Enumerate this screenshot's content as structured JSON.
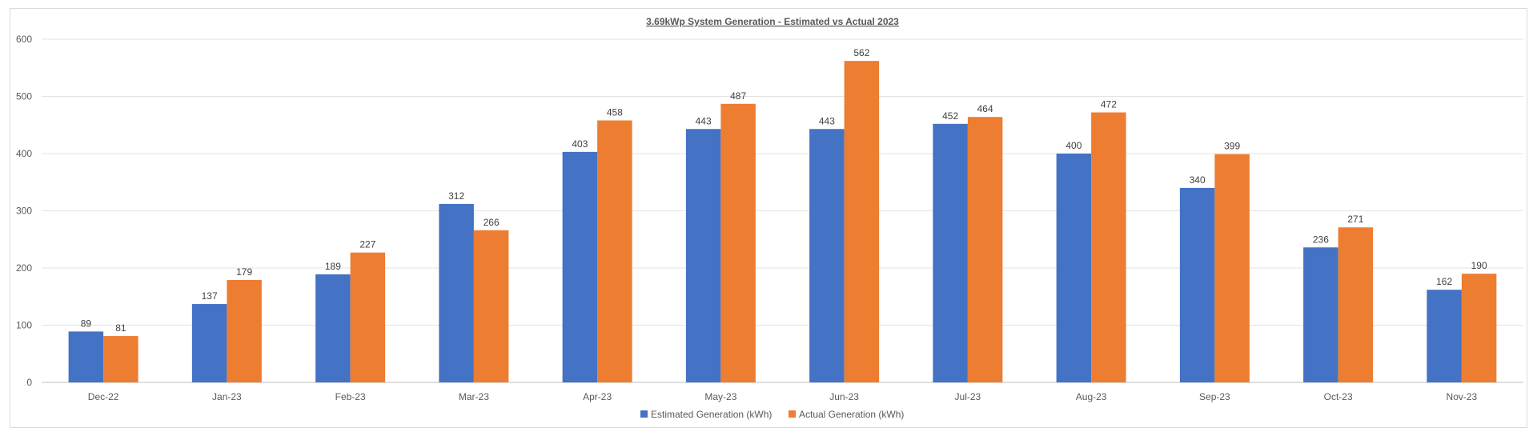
{
  "chart_data": {
    "type": "bar",
    "title": "3.69kWp System Generation - Estimated vs Actual 2023",
    "xlabel": "",
    "ylabel": "",
    "ylim": [
      0,
      600
    ],
    "yticks": [
      0,
      100,
      200,
      300,
      400,
      500,
      600
    ],
    "grid": true,
    "legend_position": "bottom",
    "categories": [
      "Dec-22",
      "Jan-23",
      "Feb-23",
      "Mar-23",
      "Apr-23",
      "May-23",
      "Jun-23",
      "Jul-23",
      "Aug-23",
      "Sep-23",
      "Oct-23",
      "Nov-23"
    ],
    "series": [
      {
        "name": "Estimated Generation (kWh)",
        "color": "#4472c4",
        "values": [
          89,
          137,
          189,
          312,
          403,
          443,
          443,
          452,
          400,
          340,
          236,
          162
        ]
      },
      {
        "name": "Actual Generation (kWh)",
        "color": "#ed7d31",
        "values": [
          81,
          179,
          227,
          266,
          458,
          487,
          562,
          464,
          472,
          399,
          271,
          190
        ]
      }
    ]
  }
}
